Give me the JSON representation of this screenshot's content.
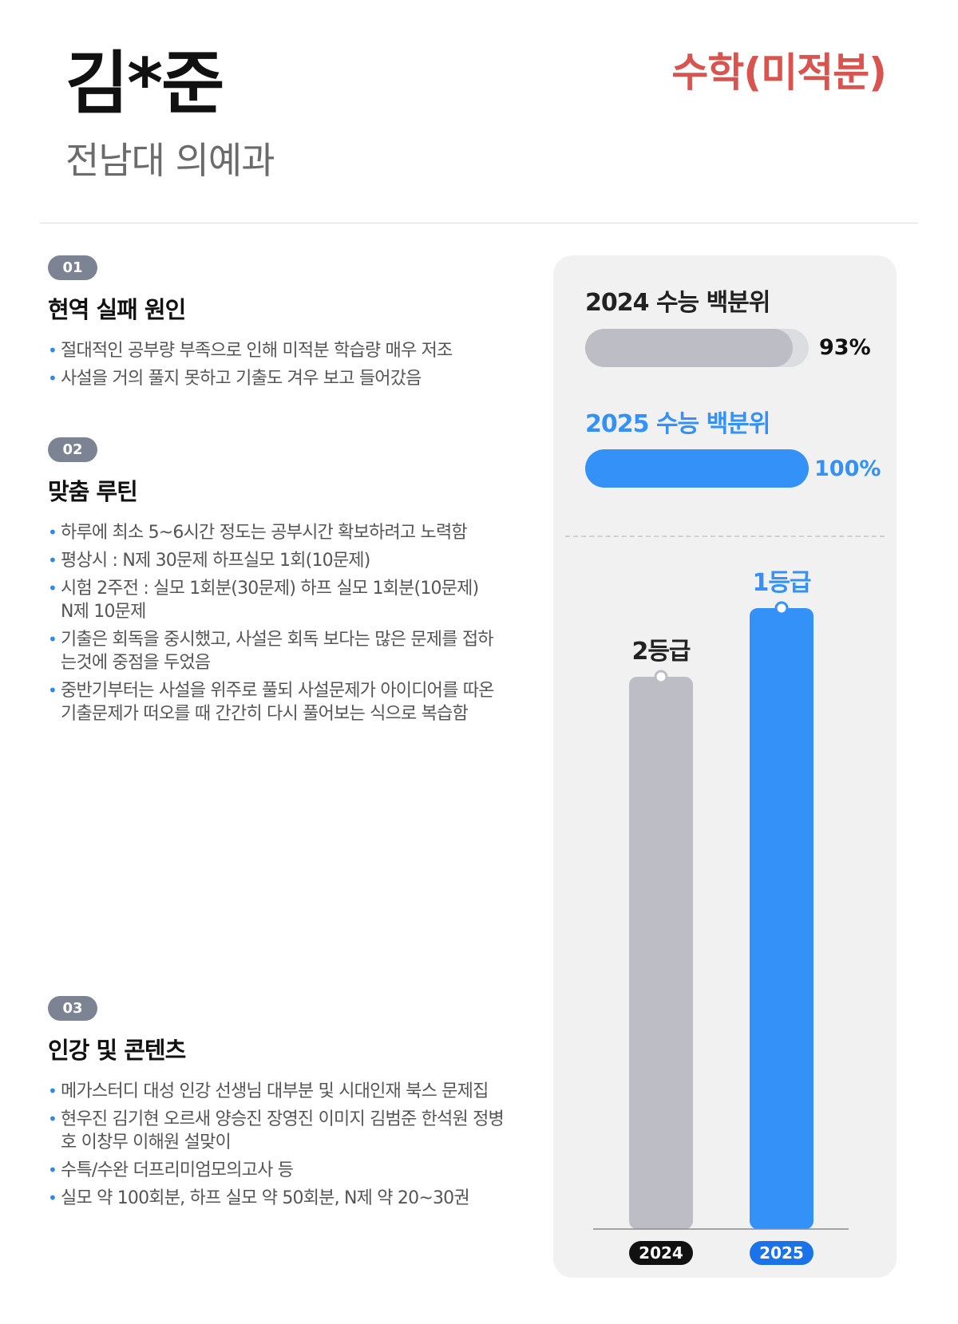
{
  "header": {
    "student_name": "김*준",
    "school": "전남대 의예과",
    "subject": "수학(미적분)"
  },
  "sections": [
    {
      "number": "01",
      "title": "현역 실패 원인",
      "items": [
        "절대적인 공부량 부족으로 인해 미적분 학습량 매우 저조",
        "사설을 거의 풀지 못하고 기출도 겨우 보고 들어갔음"
      ]
    },
    {
      "number": "02",
      "title": "맞춤 루틴",
      "items": [
        "하루에 최소 5~6시간 정도는 공부시간 확보하려고 노력함",
        "평상시 : N제 30문제 하프실모 1회(10문제)",
        "시험 2주전 : 실모 1회분(30문제) 하프 실모 1회분(10문제) N제 10문제",
        "기출은 회독을 중시했고, 사설은 회독 보다는 많은 문제를 접하는것에 중점을 두었음",
        "중반기부터는 사설을 위주로 풀되 사설문제가 아이디어를 따온 기출문제가 떠오를 때 간간히 다시 풀어보는 식으로 복습함"
      ]
    },
    {
      "number": "03",
      "title": "인강 및 콘텐츠",
      "items": [
        "메가스터디 대성 인강 선생님 대부분 및 시대인재 북스 문제집",
        "현우진 김기현 오르새 양승진 장영진 이미지 김범준 한석원 정병호 이창무 이해원 설맞이",
        "수특/수완 더프리미엄모의고사 등",
        "실모 약 100회분, 하프 실모 약 50회분, N제 약 20~30권"
      ]
    }
  ],
  "percentiles": [
    {
      "label": "2024 수능 백분위",
      "value_text": "93%",
      "value": 93,
      "color": "#bcbdc5",
      "label_color": "#222222"
    },
    {
      "label": "2025 수능 백분위",
      "value_text": "100%",
      "value": 100,
      "color": "#3391f7",
      "label_color": "#3391f7"
    }
  ],
  "chart_data": {
    "type": "bar",
    "categories": [
      "2024",
      "2025"
    ],
    "values": [
      2,
      1
    ],
    "value_labels": [
      "2등급",
      "1등급"
    ],
    "colors": [
      "#bcbdc5",
      "#3391f7"
    ],
    "label_colors": [
      "#222222",
      "#3391f7"
    ],
    "badge_colors": [
      "#111111",
      "#1a73e8"
    ],
    "note": "lower grade number = higher bar"
  }
}
